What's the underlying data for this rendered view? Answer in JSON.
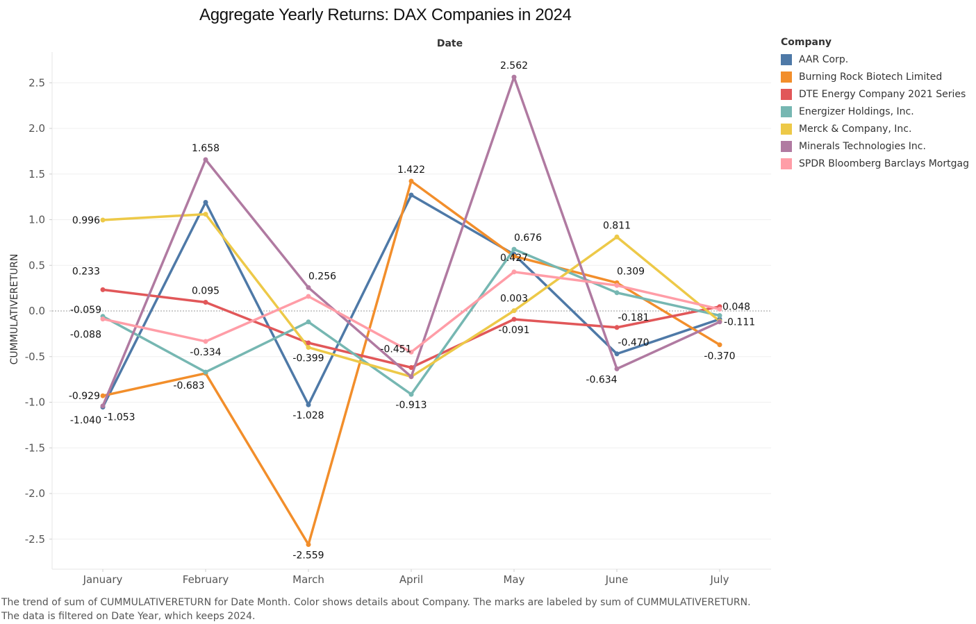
{
  "page": {
    "caption_line1": "The trend of sum of CUMMULATIVERETURN for Date Month.  Color shows details about Company.  The marks are labeled by sum of CUMMULATIVERETURN.",
    "caption_line2": "The data is filtered on Date Year, which keeps 2024."
  },
  "legend": {
    "title": "Company"
  },
  "chart_data": {
    "type": "line",
    "title": "Aggregate Yearly Returns: DAX Companies in 2024",
    "xlabel": "Date",
    "ylabel": "CUMMULATIVERETURN",
    "categories": [
      "January",
      "February",
      "March",
      "April",
      "May",
      "June",
      "July"
    ],
    "ylim": [
      -2.85,
      2.85
    ],
    "yticks": [
      "-2.5",
      "-2.0",
      "-1.5",
      "-1.0",
      "-0.5",
      "0.0",
      "0.5",
      "1.0",
      "1.5",
      "2.0",
      "2.5"
    ],
    "grid": true,
    "legend_position": "right",
    "series": [
      {
        "name": "AAR Corp.",
        "color": "#4e79a7",
        "values": [
          -1.053,
          1.19,
          -1.028,
          1.27,
          0.62,
          -0.47,
          -0.09
        ]
      },
      {
        "name": "Burning Rock Biotech Limited",
        "color": "#f28e2b",
        "values": [
          -0.929,
          -0.683,
          -2.559,
          1.422,
          0.6,
          0.309,
          -0.37
        ]
      },
      {
        "name": "DTE Energy Company 2021 Series",
        "color": "#e15759",
        "values": [
          0.233,
          0.095,
          -0.35,
          -0.62,
          -0.091,
          -0.181,
          0.048
        ]
      },
      {
        "name": "Energizer Holdings, Inc.",
        "color": "#76b7b2",
        "values": [
          -0.059,
          -0.67,
          -0.12,
          -0.913,
          0.676,
          0.2,
          -0.05
        ]
      },
      {
        "name": "Merck & Company, Inc.",
        "color": "#edc948",
        "values": [
          0.996,
          1.06,
          -0.399,
          -0.72,
          0.003,
          0.811,
          -0.111
        ]
      },
      {
        "name": "Minerals Technologies Inc.",
        "color": "#b07aa1",
        "values": [
          -1.04,
          1.658,
          0.256,
          -0.72,
          2.562,
          -0.634,
          -0.12
        ]
      },
      {
        "name": "SPDR Bloomberg Barclays Mortgag",
        "color": "#ff9da7",
        "values": [
          -0.088,
          -0.334,
          0.16,
          -0.451,
          0.427,
          0.28,
          0.02
        ]
      }
    ],
    "labels": [
      {
        "text": "0.996",
        "series": 4,
        "x": 0
      },
      {
        "text": "0.233",
        "series": 2,
        "x": 0
      },
      {
        "text": "-0.059",
        "series": 3,
        "x": 0
      },
      {
        "text": "-0.088",
        "series": 6,
        "x": 0
      },
      {
        "text": "-0.929",
        "series": 1,
        "x": 0
      },
      {
        "text": "-1.040",
        "series": 5,
        "x": 0
      },
      {
        "text": "-1.053",
        "series": 0,
        "x": 0
      },
      {
        "text": "1.658",
        "series": 5,
        "x": 1
      },
      {
        "text": "0.095",
        "series": 2,
        "x": 1
      },
      {
        "text": "-0.334",
        "series": 6,
        "x": 1
      },
      {
        "text": "-0.683",
        "series": 1,
        "x": 1
      },
      {
        "text": "0.256",
        "series": 5,
        "x": 2
      },
      {
        "text": "-0.399",
        "series": 4,
        "x": 2
      },
      {
        "text": "-1.028",
        "series": 0,
        "x": 2
      },
      {
        "text": "-2.559",
        "series": 1,
        "x": 2
      },
      {
        "text": "1.422",
        "series": 1,
        "x": 3
      },
      {
        "text": "-0.451",
        "series": 6,
        "x": 3
      },
      {
        "text": "-0.913",
        "series": 3,
        "x": 3
      },
      {
        "text": "2.562",
        "series": 5,
        "x": 4
      },
      {
        "text": "0.676",
        "series": 3,
        "x": 4
      },
      {
        "text": "0.427",
        "series": 6,
        "x": 4
      },
      {
        "text": "0.003",
        "series": 4,
        "x": 4
      },
      {
        "text": "-0.091",
        "series": 2,
        "x": 4
      },
      {
        "text": "0.811",
        "series": 4,
        "x": 5
      },
      {
        "text": "0.309",
        "series": 1,
        "x": 5
      },
      {
        "text": "-0.181",
        "series": 2,
        "x": 5
      },
      {
        "text": "-0.470",
        "series": 0,
        "x": 5
      },
      {
        "text": "-0.634",
        "series": 5,
        "x": 5
      },
      {
        "text": "0.048",
        "series": 2,
        "x": 6
      },
      {
        "text": "-0.111",
        "series": 4,
        "x": 6
      },
      {
        "text": "-0.370",
        "series": 1,
        "x": 6
      }
    ]
  }
}
